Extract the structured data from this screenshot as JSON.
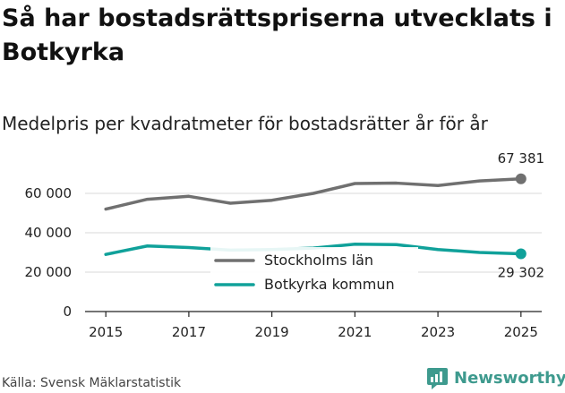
{
  "header": {
    "title": "Så har bostadsrättspriserna utvecklats i Botkyrka",
    "subtitle": "Medelpris per kvadratmeter för bostadsrätter år för år"
  },
  "footer": {
    "source": "Källa: Svensk Mäklarstatistik",
    "brand": "Newsworthy",
    "brand_icon": "newsworthy-logo-icon",
    "brand_color": "#3e9a8e"
  },
  "chart_data": {
    "type": "line",
    "title": "Så har bostadsrättspriserna utvecklats i Botkyrka",
    "subtitle": "Medelpris per kvadratmeter för bostadsrätter år för år",
    "xlabel": "",
    "ylabel": "",
    "x": [
      2015,
      2016,
      2017,
      2018,
      2019,
      2020,
      2021,
      2022,
      2023,
      2024,
      2025
    ],
    "xticks": [
      2015,
      2017,
      2019,
      2021,
      2023,
      2025
    ],
    "yticks": [
      0,
      20000,
      40000,
      60000
    ],
    "ytick_labels": [
      "0",
      "20 000",
      "40 000",
      "60 000"
    ],
    "xlim": [
      2014.5,
      2025.5
    ],
    "ylim": [
      0,
      70000
    ],
    "grid": "horizontal",
    "legend_position": "center-bottom",
    "series": [
      {
        "name": "Stockholms län",
        "color": "#707070",
        "values": [
          52000,
          57000,
          58500,
          55000,
          56500,
          60000,
          65000,
          65200,
          64000,
          66300,
          67381
        ],
        "end_label": "67 381"
      },
      {
        "name": "Botkyrka kommun",
        "color": "#10a19a",
        "values": [
          29000,
          33300,
          32500,
          31200,
          31500,
          32200,
          34200,
          34000,
          31500,
          30000,
          29302
        ],
        "end_label": "29 302"
      }
    ]
  }
}
